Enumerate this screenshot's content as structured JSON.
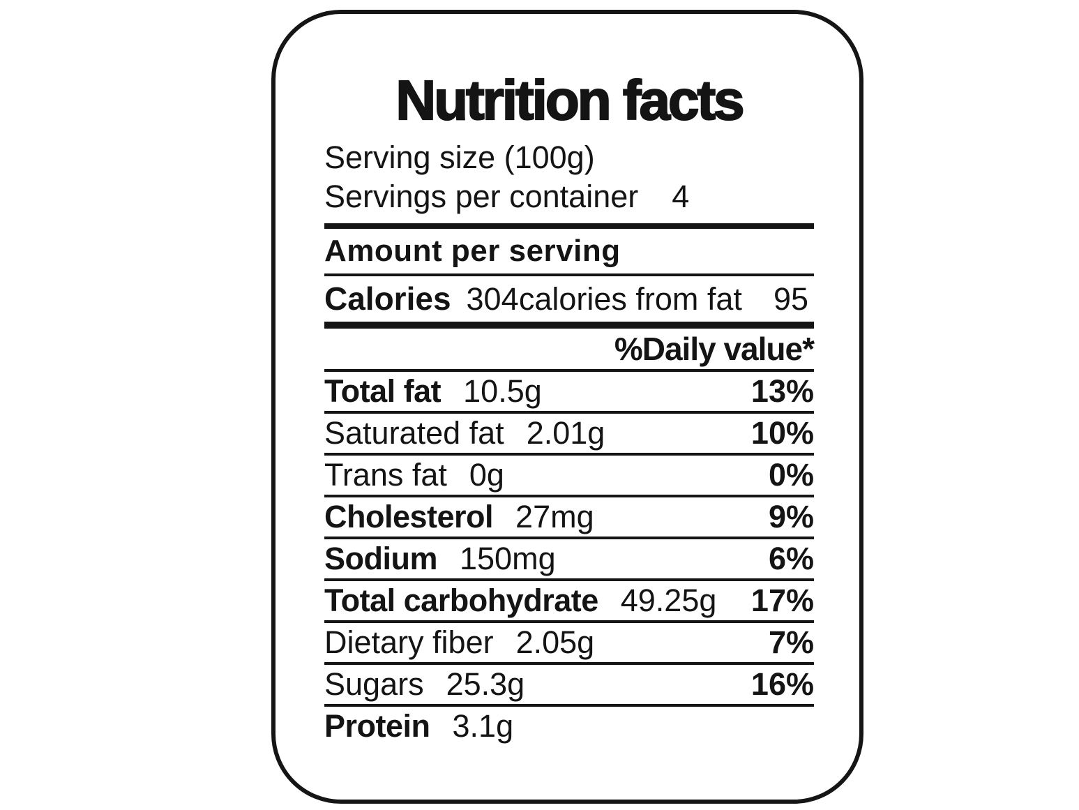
{
  "nutrition": {
    "title": "Nutrition facts",
    "serving_size": "Serving size (100g)",
    "servings_label": "Servings per container",
    "servings_value": "4",
    "amount_per_serving": "Amount per serving",
    "calories": {
      "label": "Calories",
      "value": "304",
      "from_fat_label": "calories from fat",
      "from_fat_value": "95"
    },
    "daily_value_header": "%Daily value*",
    "rows": [
      {
        "name": "Total fat",
        "value": "10.5g",
        "percent": "13%"
      },
      {
        "name": "Saturated fat",
        "value": "2.01g",
        "percent": "10%"
      },
      {
        "name": "Trans fat",
        "value": "0g",
        "percent": "0%"
      },
      {
        "name": "Cholesterol",
        "value": "27mg",
        "percent": "9%"
      },
      {
        "name": "Sodium",
        "value": "150mg",
        "percent": "6%"
      },
      {
        "name": "Total carbohydrate",
        "value": "49.25g",
        "percent": "17%"
      },
      {
        "name": "Dietary fiber",
        "value": "2.05g",
        "percent": "7%"
      },
      {
        "name": "Sugars",
        "value": "25.3g",
        "percent": "16%"
      },
      {
        "name": "Protein",
        "value": "3.1g",
        "percent": ""
      }
    ],
    "colors": {
      "ink": "#141414",
      "background": "#ffffff"
    }
  }
}
